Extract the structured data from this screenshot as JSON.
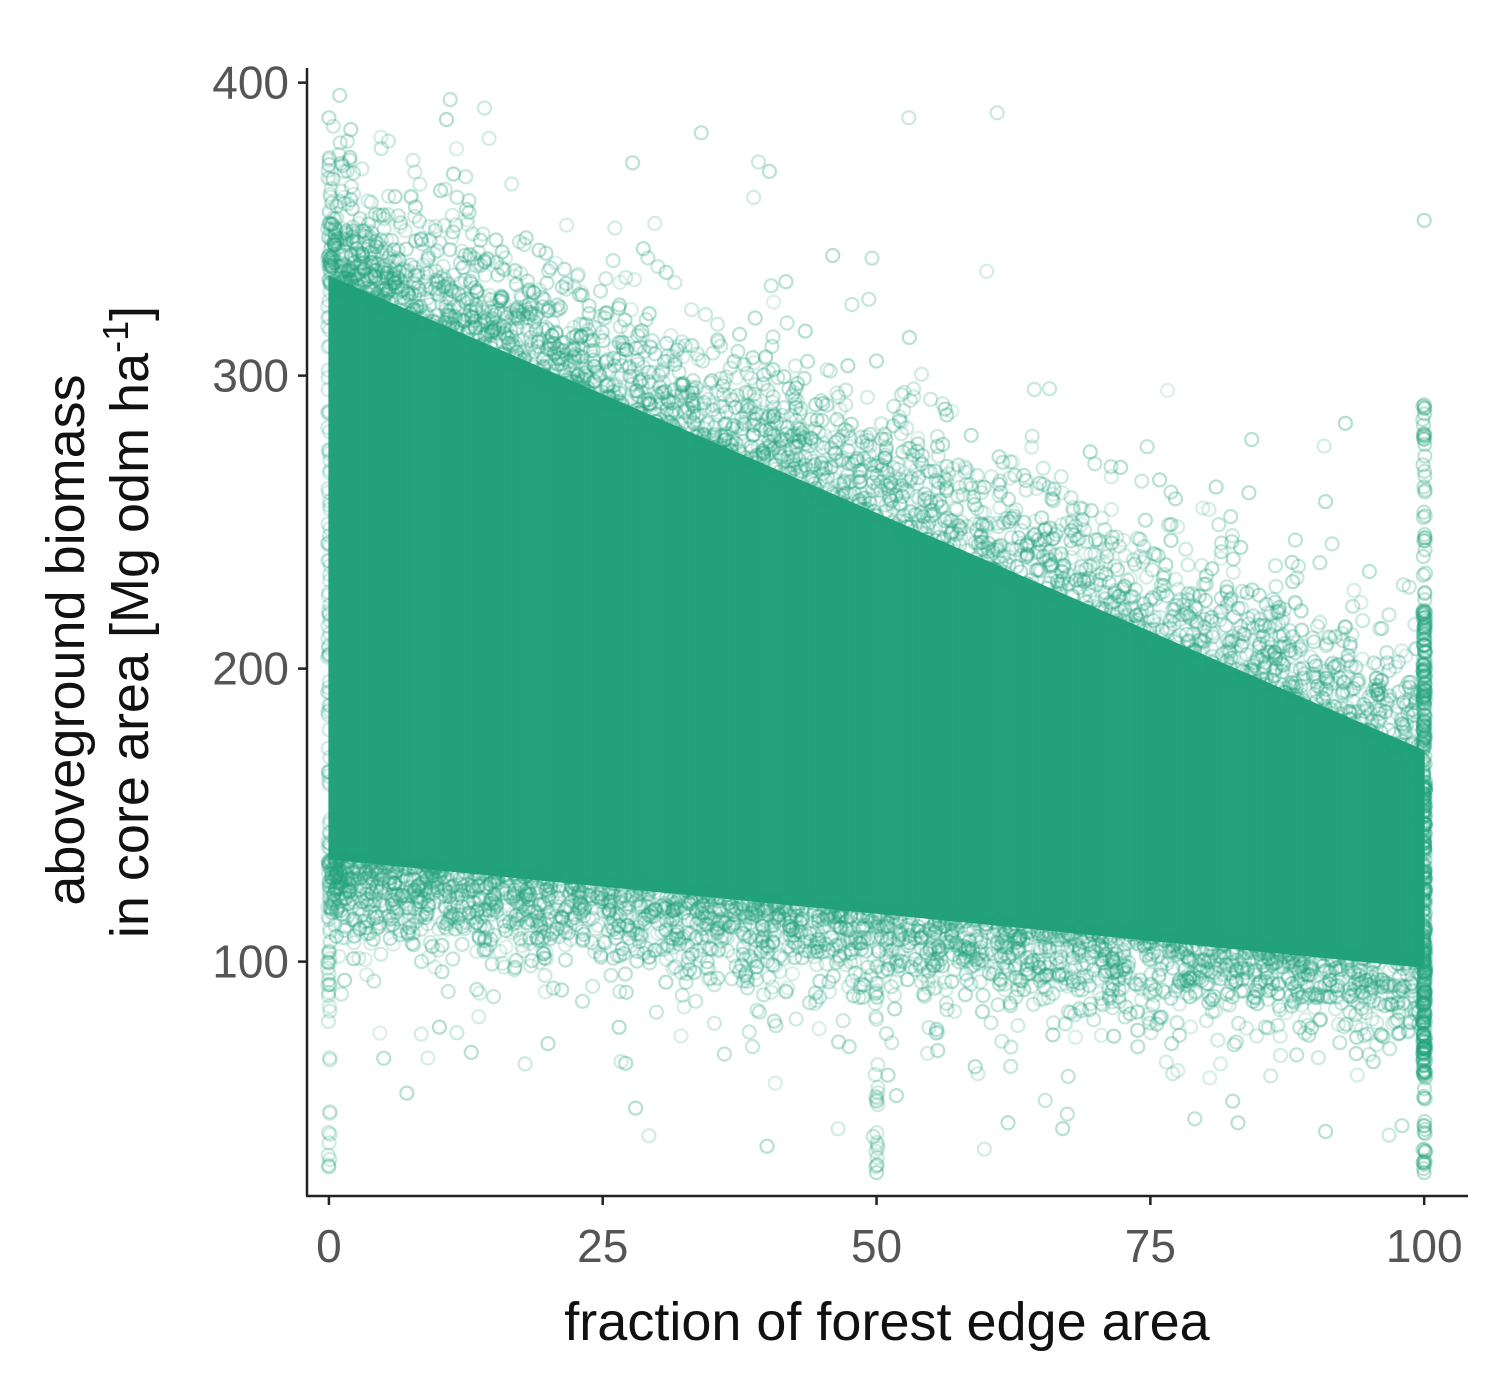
{
  "chart_data": {
    "type": "scatter",
    "title": "",
    "xlabel": "fraction of forest edge area",
    "ylabel_line1": "aboveground biomass",
    "ylabel_line2_prefix": "in core area [Mg odm ha",
    "ylabel_line2_superscript": "-1",
    "ylabel_line2_suffix": "]",
    "xlim": [
      -2,
      104
    ],
    "ylim": [
      20,
      405
    ],
    "x_ticks": [
      0,
      25,
      50,
      75,
      100
    ],
    "x_tick_labels": [
      "0",
      "25",
      "50",
      "75",
      "100"
    ],
    "y_ticks": [
      100,
      200,
      300,
      400
    ],
    "y_tick_labels": [
      "100",
      "200",
      "300",
      "400"
    ],
    "grid": false,
    "legend": "none",
    "point_color": "#23a27b",
    "point_style": "open-circle-translucent",
    "trend": {
      "mean_at_0": 230,
      "mean_at_100": 128,
      "upper_at_0": 352,
      "upper_at_100": 190,
      "lower_at_0": 125,
      "lower_at_100": 88
    },
    "notable_points": [
      {
        "x": 0,
        "y": 388
      },
      {
        "x": 2,
        "y": 384
      },
      {
        "x": 0,
        "y": 372
      },
      {
        "x": 2,
        "y": 360
      },
      {
        "x": 18,
        "y": 347
      },
      {
        "x": 46,
        "y": 341
      },
      {
        "x": 100,
        "y": 353
      },
      {
        "x": 53,
        "y": 313
      },
      {
        "x": 50,
        "y": 305
      },
      {
        "x": 26,
        "y": 306
      },
      {
        "x": 100,
        "y": 290
      },
      {
        "x": 66,
        "y": 258
      },
      {
        "x": 81,
        "y": 262
      },
      {
        "x": 84,
        "y": 260
      },
      {
        "x": 91,
        "y": 257
      },
      {
        "x": 5,
        "y": 67
      },
      {
        "x": 13,
        "y": 69
      },
      {
        "x": 20,
        "y": 72
      },
      {
        "x": 28,
        "y": 50
      },
      {
        "x": 40,
        "y": 37
      },
      {
        "x": 50,
        "y": 28
      },
      {
        "x": 62,
        "y": 45
      },
      {
        "x": 67,
        "y": 43
      },
      {
        "x": 83,
        "y": 45
      },
      {
        "x": 91,
        "y": 42
      },
      {
        "x": 0,
        "y": 30
      },
      {
        "x": 100,
        "y": 28
      }
    ],
    "vertical_streaks": [
      {
        "x": 0,
        "y_min": 30,
        "y_max": 372
      },
      {
        "x": 100,
        "y_min": 28,
        "y_max": 290
      },
      {
        "x": 50,
        "y_min": 28,
        "y_max": 100
      }
    ]
  }
}
